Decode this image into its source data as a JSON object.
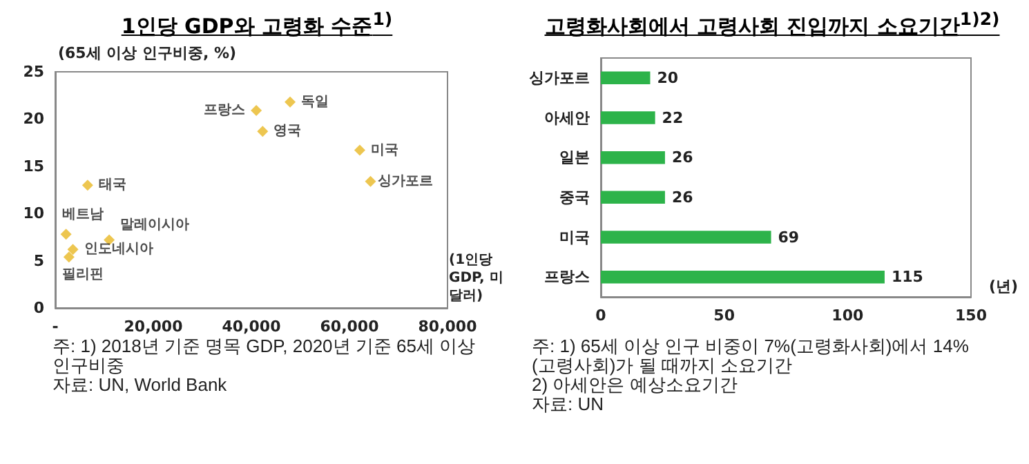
{
  "chart_data": [
    {
      "type": "scatter",
      "title": "1인당 GDP와 고령화 수준$^{1)}$",
      "xlabel": "(1인당 GDP, 미달러)",
      "ylabel": "(65세 이상 인구비중, %)",
      "xlim": [
        0,
        80000
      ],
      "xticks": [
        {
          "value": 0,
          "label": "-"
        },
        {
          "value": 20000,
          "label": "20,000"
        },
        {
          "value": 40000,
          "label": "40,000"
        },
        {
          "value": 60000,
          "label": "60,000"
        },
        {
          "value": 80000,
          "label": "80,000"
        }
      ],
      "ylim": [
        0,
        25
      ],
      "yticks": [
        0,
        5,
        10,
        15,
        20,
        25
      ],
      "grid": false,
      "legend": false,
      "marker": "diamond",
      "series": [
        {
          "name": "독일",
          "color": "#e8b824",
          "x": [
            47900
          ],
          "values": [
            21.8
          ]
        },
        {
          "name": "프랑스",
          "color": "#e8b824",
          "x": [
            41000
          ],
          "values": [
            20.9
          ]
        },
        {
          "name": "영국",
          "color": "#e8b824",
          "x": [
            42300
          ],
          "values": [
            18.7
          ]
        },
        {
          "name": "미국",
          "color": "#e8b824",
          "x": [
            62100
          ],
          "values": [
            16.7
          ]
        },
        {
          "name": "싱가포르",
          "color": "#e8b824",
          "x": [
            64300
          ],
          "values": [
            13.4
          ]
        },
        {
          "name": "태국",
          "color": "#e8b824",
          "x": [
            6600
          ],
          "values": [
            13.0
          ]
        },
        {
          "name": "베트남",
          "color": "#e8b824",
          "x": [
            2200
          ],
          "values": [
            7.8
          ]
        },
        {
          "name": "말레이시아",
          "color": "#e8b824",
          "x": [
            11000
          ],
          "values": [
            7.2
          ]
        },
        {
          "name": "인도네시아",
          "color": "#e8b824",
          "x": [
            3600
          ],
          "values": [
            6.2
          ]
        },
        {
          "name": "필리핀",
          "color": "#e8b824",
          "x": [
            2800
          ],
          "values": [
            5.4
          ]
        }
      ],
      "annotations": [
        "주: 1) 2018년 기준 명목 GDP, 2020년 기준 65세 이상 인구비중",
        "자료: UN, World Bank"
      ]
    },
    {
      "type": "bar",
      "orientation": "horizontal",
      "title": "고령화사회에서 고령사회 진입까지 소요기간$^{1)2)}$",
      "xlabel": "(년)",
      "categories": [
        "싱가포르",
        "아세안",
        "일본",
        "중국",
        "미국",
        "프랑스"
      ],
      "values": [
        20,
        22,
        26,
        26,
        69,
        115
      ],
      "color": "#2db34a",
      "data_labels": true,
      "xlim": [
        0,
        150
      ],
      "xticks": [
        0,
        50,
        100,
        150
      ],
      "grid": false,
      "legend": false,
      "annotations": [
        "주: 1) 65세 이상 인구 비중이 7%(고령화사회)에서 14%(고령사회)가 될 때까지 소요기간",
        "2) 아세안은 예상소요기간",
        "자료: UN"
      ]
    }
  ]
}
